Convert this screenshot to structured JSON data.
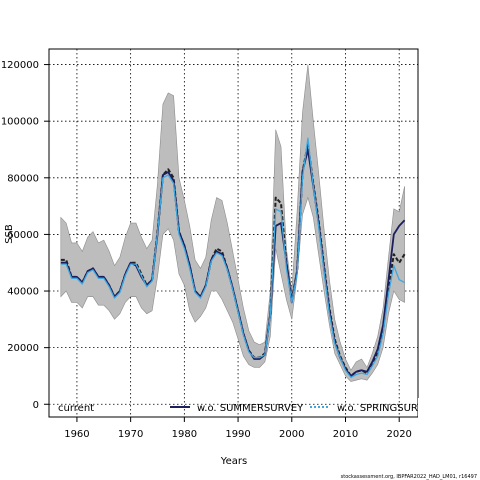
{
  "chart_data": {
    "type": "line",
    "title": "",
    "xlabel": "Years",
    "ylabel": "SSB",
    "xlim": [
      1954.8,
      2023.5
    ],
    "ylim": [
      -4500,
      125500
    ],
    "x_ticks": [
      1960,
      1970,
      1980,
      1990,
      2000,
      2010,
      2020
    ],
    "y_ticks": [
      0,
      20000,
      40000,
      60000,
      80000,
      100000,
      120000
    ],
    "x_tick_labels": [
      "1960",
      "1970",
      "1980",
      "1990",
      "2000",
      "2010",
      "2020"
    ],
    "y_tick_labels": [
      "0",
      "20000",
      "40000",
      "60000",
      "80000",
      "100000",
      "120000"
    ],
    "grid": true,
    "legend_position": "bottom",
    "band": {
      "color": "#bdbdbd",
      "x": [
        1957,
        1958,
        1959,
        1960,
        1961,
        1962,
        1963,
        1964,
        1965,
        1966,
        1967,
        1968,
        1969,
        1970,
        1971,
        1972,
        1973,
        1974,
        1975,
        1976,
        1977,
        1978,
        1979,
        1980,
        1981,
        1982,
        1983,
        1984,
        1985,
        1986,
        1987,
        1988,
        1989,
        1990,
        1991,
        1992,
        1993,
        1994,
        1995,
        1996,
        1997,
        1998,
        1999,
        2000,
        2001,
        2002,
        2003,
        2004,
        2005,
        2006,
        2007,
        2008,
        2009,
        2010,
        2011,
        2012,
        2013,
        2014,
        2015,
        2016,
        2017,
        2018,
        2019,
        2020,
        2021
      ],
      "upper": [
        66000,
        64000,
        57000,
        57000,
        54000,
        59000,
        61000,
        57000,
        58000,
        54000,
        49000,
        52000,
        59000,
        64000,
        64000,
        59000,
        55000,
        58000,
        78000,
        106000,
        110000,
        109000,
        80000,
        72000,
        63000,
        51000,
        48000,
        52000,
        65000,
        73000,
        72000,
        64000,
        54000,
        44000,
        34000,
        26000,
        22000,
        21000,
        22000,
        40000,
        97000,
        91000,
        55000,
        40000,
        68000,
        103000,
        120000,
        100000,
        82000,
        62000,
        44000,
        30000,
        22000,
        16000,
        12000,
        15000,
        16000,
        13000,
        18000,
        24000,
        34000,
        52000,
        69000,
        68000,
        77000
      ],
      "lower": [
        38000,
        40000,
        36000,
        36000,
        34000,
        38000,
        38000,
        35000,
        35000,
        33000,
        30000,
        32000,
        36000,
        38000,
        38000,
        34000,
        32000,
        33000,
        45000,
        60000,
        62000,
        58000,
        46000,
        42000,
        33000,
        29000,
        31000,
        34000,
        40000,
        40000,
        37000,
        33000,
        29000,
        23000,
        17000,
        14000,
        13000,
        13000,
        15000,
        24000,
        55000,
        46000,
        37000,
        30000,
        45000,
        67000,
        73000,
        66000,
        53000,
        40000,
        28000,
        18000,
        14000,
        10000,
        8000,
        8500,
        9000,
        8500,
        11000,
        14000,
        20000,
        32000,
        40000,
        37000,
        36000
      ]
    },
    "series": [
      {
        "name": "current",
        "color": "#222222",
        "dash": "4 2",
        "x": [
          1957,
          1958,
          1959,
          1960,
          1961,
          1962,
          1963,
          1964,
          1965,
          1966,
          1967,
          1968,
          1969,
          1970,
          1971,
          1972,
          1973,
          1974,
          1975,
          1976,
          1977,
          1978,
          1979,
          1980,
          1981,
          1982,
          1983,
          1984,
          1985,
          1986,
          1987,
          1988,
          1989,
          1990,
          1991,
          1992,
          1993,
          1994,
          1995,
          1996,
          1997,
          1998,
          1999,
          2000,
          2001,
          2002,
          2003,
          2004,
          2005,
          2006,
          2007,
          2008,
          2009,
          2010,
          2011,
          2012,
          2013,
          2014,
          2015,
          2016,
          2017,
          2018,
          2019,
          2020,
          2021
        ],
        "values": [
          51000,
          51000,
          45000,
          45000,
          43000,
          47000,
          48000,
          45000,
          45000,
          42000,
          38000,
          40000,
          46000,
          50000,
          50000,
          46000,
          42000,
          44000,
          61000,
          81000,
          83000,
          80000,
          61000,
          56000,
          49000,
          40000,
          38000,
          42000,
          51000,
          55000,
          54000,
          48000,
          41000,
          33000,
          25000,
          19000,
          16500,
          16500,
          18000,
          32000,
          73000,
          71000,
          50000,
          37000,
          47000,
          82000,
          92000,
          78000,
          65000,
          49000,
          34000,
          23000,
          17000,
          13000,
          10000,
          11500,
          12000,
          11000,
          14500,
          18000,
          26000,
          41000,
          53000,
          50000,
          53000
        ]
      },
      {
        "name": "w.o. SUMMERSURVEY",
        "color": "#1c1e5e",
        "dash": "",
        "x": [
          1957,
          1958,
          1959,
          1960,
          1961,
          1962,
          1963,
          1964,
          1965,
          1966,
          1967,
          1968,
          1969,
          1970,
          1971,
          1972,
          1973,
          1974,
          1975,
          1976,
          1977,
          1978,
          1979,
          1980,
          1981,
          1982,
          1983,
          1984,
          1985,
          1986,
          1987,
          1988,
          1989,
          1990,
          1991,
          1992,
          1993,
          1994,
          1995,
          1996,
          1997,
          1998,
          1999,
          2000,
          2001,
          2002,
          2003,
          2004,
          2005,
          2006,
          2007,
          2008,
          2009,
          2010,
          2011,
          2012,
          2013,
          2014,
          2015,
          2016,
          2017,
          2018,
          2019,
          2020,
          2021
        ],
        "values": [
          50000,
          50000,
          45000,
          45000,
          43000,
          47000,
          48000,
          45000,
          45000,
          42000,
          38000,
          40000,
          46000,
          50000,
          49000,
          45000,
          42000,
          44000,
          60000,
          81000,
          82000,
          79000,
          61000,
          56000,
          49000,
          40000,
          38000,
          42000,
          51000,
          54000,
          53000,
          48000,
          41000,
          33000,
          25000,
          19000,
          16000,
          16000,
          17500,
          32000,
          63000,
          64000,
          50000,
          36000,
          47000,
          82000,
          90000,
          77000,
          64000,
          48000,
          33000,
          22000,
          16500,
          12500,
          10000,
          11500,
          12000,
          11500,
          15000,
          19500,
          28000,
          44000,
          60000,
          63000,
          65000
        ]
      },
      {
        "name": "w.o. SPRINGSURVEY",
        "color": "#3fa8e0",
        "dash": "",
        "x": [
          1957,
          1958,
          1959,
          1960,
          1961,
          1962,
          1963,
          1964,
          1965,
          1966,
          1967,
          1968,
          1969,
          1970,
          1971,
          1972,
          1973,
          1974,
          1975,
          1976,
          1977,
          1978,
          1979,
          1980,
          1981,
          1982,
          1983,
          1984,
          1985,
          1986,
          1987,
          1988,
          1989,
          1990,
          1991,
          1992,
          1993,
          1994,
          1995,
          1996,
          1997,
          1998,
          1999,
          2000,
          2001,
          2002,
          2003,
          2004,
          2005,
          2006,
          2007,
          2008,
          2009,
          2010,
          2011,
          2012,
          2013,
          2014,
          2015,
          2016,
          2017,
          2018,
          2019,
          2020,
          2021
        ],
        "values": [
          49500,
          49500,
          44500,
          44500,
          42500,
          46500,
          47500,
          44500,
          44500,
          41500,
          37500,
          39500,
          45500,
          49500,
          49500,
          45500,
          41500,
          43500,
          60500,
          80000,
          81000,
          78000,
          60000,
          55000,
          48000,
          39500,
          37500,
          41500,
          50500,
          53500,
          52500,
          47500,
          40500,
          32500,
          24500,
          18500,
          16500,
          16500,
          17500,
          31500,
          69000,
          68000,
          48000,
          36000,
          46000,
          80000,
          94000,
          77000,
          63000,
          47000,
          32000,
          21500,
          16500,
          12000,
          9500,
          10500,
          11000,
          10500,
          13500,
          17000,
          25000,
          39000,
          49000,
          44000,
          43000
        ]
      }
    ],
    "legend": {
      "entries": [
        "current",
        "w.o. SUMMERSURVEY",
        "w.o. SPRINGSURVEY"
      ]
    }
  },
  "footer": {
    "note": "stockassessment.org, IBPFAR2022_HAD_LM01, r16497"
  }
}
